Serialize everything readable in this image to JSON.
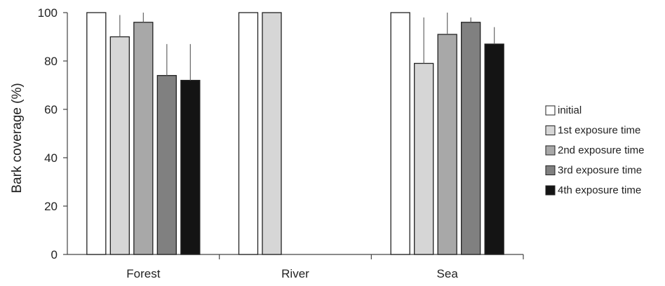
{
  "chart_data": {
    "type": "bar",
    "ylabel": "Bark coverage (%)",
    "ylim": [
      0,
      100
    ],
    "yticks": [
      0,
      20,
      40,
      60,
      80,
      100
    ],
    "categories": [
      "Forest",
      "River",
      "Sea"
    ],
    "series": [
      {
        "name": "initial",
        "color": "#ffffff",
        "values": [
          100,
          100,
          100
        ],
        "errors": [
          0,
          0,
          0
        ]
      },
      {
        "name": "1st exposure time",
        "color": "#d6d6d6",
        "values": [
          90,
          100,
          79
        ],
        "errors": [
          9,
          0,
          19
        ]
      },
      {
        "name": "2nd exposure time",
        "color": "#a8a8a8",
        "values": [
          96,
          null,
          91
        ],
        "errors": [
          4,
          null,
          9
        ]
      },
      {
        "name": "3rd exposure time",
        "color": "#808080",
        "values": [
          74,
          null,
          96
        ],
        "errors": [
          13,
          null,
          2
        ]
      },
      {
        "name": "4th exposure time",
        "color": "#141414",
        "values": [
          72,
          null,
          87
        ],
        "errors": [
          15,
          null,
          7
        ]
      }
    ],
    "grid": false,
    "legend_position": "right"
  }
}
